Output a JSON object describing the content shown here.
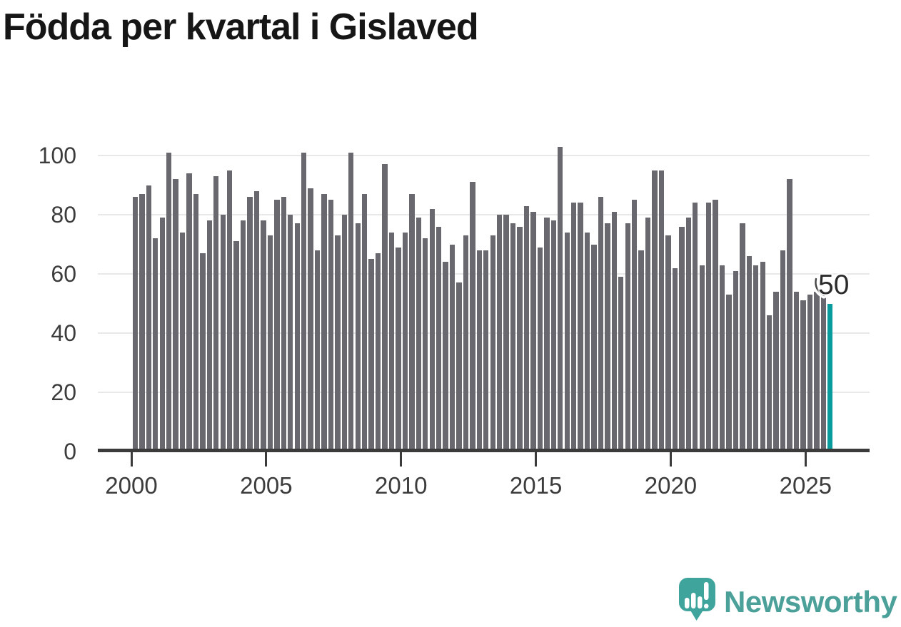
{
  "title": "Födda per kvartal i Gislaved",
  "annotation": {
    "text": "50"
  },
  "footer": {
    "brand": "Newsworthy"
  },
  "colors": {
    "background": "#ffffff",
    "bar": "#68686e",
    "highlight": "#0a9c9c",
    "grid": "#e8e8e8",
    "axis": "#3b3b3b",
    "tick_text": "#3c3c3c",
    "title_text": "#161616",
    "annotation_text": "#2b2b2b",
    "leader_line": "#454545",
    "logo": "#3ea49c",
    "logo_text": "#4ba09a"
  },
  "chart_data": {
    "type": "bar",
    "title": "Födda per kvartal i Gislaved",
    "frequency": "quarterly",
    "start_period": "2000 Q1",
    "end_period": "2025 Q4",
    "values": [
      86,
      87,
      90,
      72,
      79,
      101,
      92,
      74,
      94,
      87,
      67,
      78,
      93,
      80,
      95,
      71,
      78,
      86,
      88,
      78,
      73,
      85,
      86,
      80,
      77,
      101,
      89,
      68,
      87,
      85,
      73,
      80,
      101,
      77,
      87,
      65,
      67,
      97,
      74,
      69,
      74,
      87,
      79,
      72,
      82,
      76,
      64,
      70,
      57,
      73,
      91,
      68,
      68,
      73,
      80,
      80,
      77,
      76,
      83,
      81,
      69,
      79,
      78,
      103,
      74,
      84,
      84,
      74,
      70,
      86,
      77,
      81,
      59,
      77,
      85,
      68,
      79,
      95,
      95,
      73,
      62,
      76,
      79,
      84,
      63,
      84,
      85,
      63,
      53,
      61,
      77,
      66,
      63,
      64,
      46,
      54,
      68,
      92,
      54,
      51,
      53,
      54,
      53,
      50
    ],
    "highlight_last": true,
    "last_value_label": "50",
    "xticks": [
      "2000",
      "2005",
      "2010",
      "2015",
      "2020",
      "2025"
    ],
    "yticks": [
      "0",
      "20",
      "40",
      "60",
      "80",
      "100"
    ],
    "ylim": [
      0,
      105
    ],
    "grid": "horizontal",
    "legend": "none"
  }
}
